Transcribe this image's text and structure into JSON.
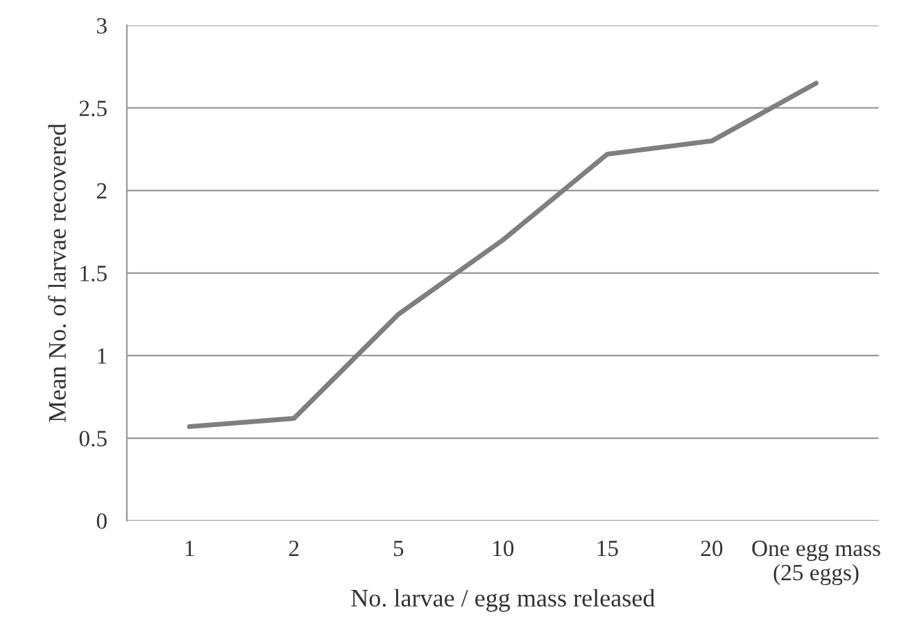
{
  "chart_data": {
    "type": "line",
    "xlabel": "No. larvae / egg mass released",
    "ylabel": "Mean No. of larvae recovered",
    "categories": [
      "1",
      "2",
      "5",
      "10",
      "15",
      "20",
      "One egg mass\n(25 eggs)"
    ],
    "series": [
      {
        "color": "#7f7f7f",
        "values": [
          0.57,
          0.62,
          1.25,
          1.7,
          2.22,
          2.3,
          2.65
        ]
      }
    ],
    "ylim": [
      0,
      3
    ],
    "yticks": [
      0,
      0.5,
      1,
      1.5,
      2,
      2.5,
      3
    ],
    "grid": "y",
    "legend": false,
    "marker": "none",
    "line_style": "solid"
  }
}
